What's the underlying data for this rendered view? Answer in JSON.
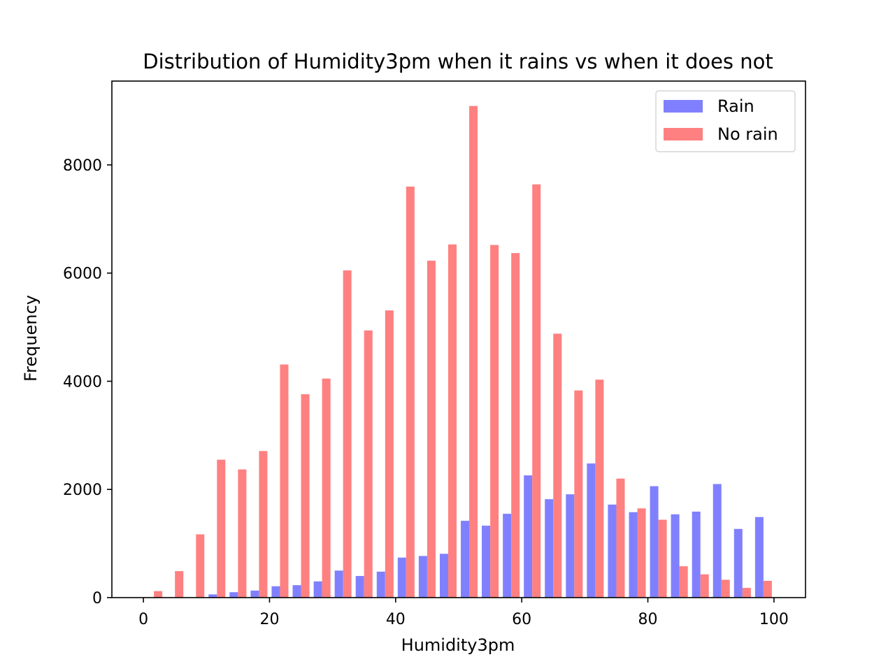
{
  "chart_data": {
    "type": "bar",
    "title": "Distribution of Humidity3pm when it rains vs when it does not",
    "xlabel": "Humidity3pm",
    "ylabel": "Frequency",
    "xlim": [
      -5,
      105
    ],
    "ylim": [
      0,
      9550
    ],
    "xticks": [
      0,
      20,
      40,
      60,
      80,
      100
    ],
    "yticks": [
      0,
      2000,
      4000,
      6000,
      8000
    ],
    "bin_edges": [
      0,
      3.33,
      6.67,
      10,
      13.33,
      16.67,
      20,
      23.33,
      26.67,
      30,
      33.33,
      36.67,
      40,
      43.33,
      46.67,
      50,
      53.33,
      56.67,
      60,
      63.33,
      66.67,
      70,
      73.33,
      76.67,
      80,
      83.33,
      86.67,
      90,
      93.33,
      96.67,
      100
    ],
    "grid": false,
    "legend_position": "top-right",
    "series": [
      {
        "name": "Rain",
        "color": "#8080ff",
        "values": [
          0,
          0,
          0,
          60,
          100,
          130,
          210,
          230,
          300,
          500,
          400,
          480,
          740,
          770,
          810,
          1420,
          1330,
          1550,
          2260,
          1820,
          1910,
          2480,
          1720,
          1580,
          2060,
          1540,
          1590,
          2100,
          1270,
          1490
        ]
      },
      {
        "name": "No rain",
        "color": "#ff8080",
        "values": [
          120,
          490,
          1170,
          2550,
          2370,
          2710,
          4310,
          3760,
          4050,
          6050,
          4940,
          5310,
          7600,
          6230,
          6530,
          9090,
          6520,
          6370,
          7640,
          4880,
          3830,
          4030,
          2200,
          1650,
          1440,
          580,
          430,
          330,
          180,
          310
        ]
      }
    ]
  }
}
